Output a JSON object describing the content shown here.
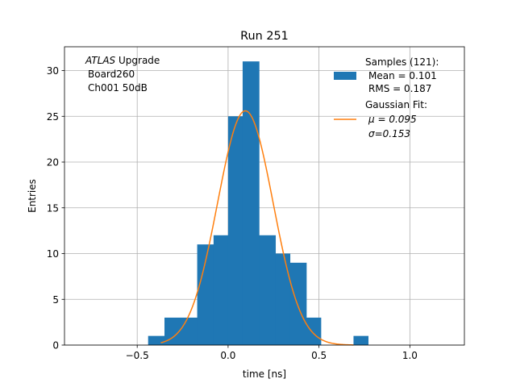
{
  "chart_data": {
    "type": "bar",
    "title": "Run 251",
    "xlabel": "time [ns]",
    "ylabel": "Entries",
    "xlim": [
      -0.9,
      1.3
    ],
    "ylim": [
      0,
      32.6
    ],
    "xticks": [
      -0.5,
      0.0,
      0.5,
      1.0
    ],
    "xtick_labels": [
      "−0.5",
      "0.0",
      "0.5",
      "1.0"
    ],
    "yticks": [
      0,
      5,
      10,
      15,
      20,
      25,
      30
    ],
    "ytick_labels": [
      "0",
      "5",
      "10",
      "15",
      "20",
      "25",
      "30"
    ],
    "grid": true,
    "bin_edges": [
      -0.44,
      -0.35,
      -0.26,
      -0.17,
      -0.08,
      0.0,
      0.08,
      0.17,
      0.26,
      0.34,
      0.43,
      0.51,
      0.6,
      0.69,
      0.77
    ],
    "values": [
      1,
      3,
      3,
      11,
      12,
      25,
      31,
      12,
      10,
      9,
      3,
      0,
      0,
      1
    ],
    "bar_color": "#1f77b4",
    "fit": {
      "mu": 0.095,
      "sigma": 0.153,
      "amplitude": 25.6,
      "x_range": [
        -0.37,
        0.69
      ],
      "color": "#ff7f0e"
    },
    "annotation": [
      "ATLAS Upgrade",
      "Board260",
      "Ch001 50dB"
    ],
    "legend_position": "top-right",
    "legend": {
      "samples": [
        "Samples (121):",
        "Mean = 0.101",
        "RMS = 0.187"
      ],
      "fit": [
        "Gaussian Fit:",
        "μ = 0.095",
        "σ=0.153"
      ]
    }
  }
}
